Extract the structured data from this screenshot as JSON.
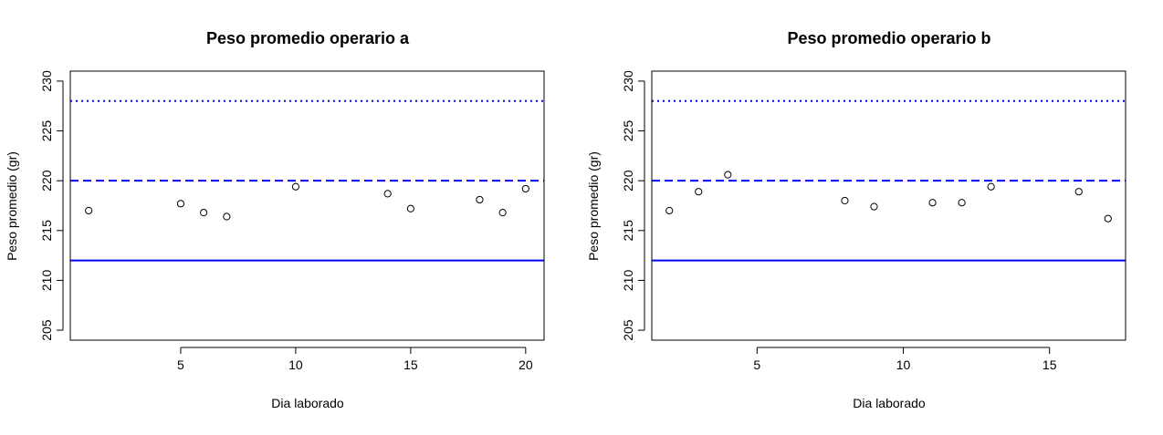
{
  "chart_data": [
    {
      "type": "scatter",
      "title": "Peso promedio operario a",
      "xlabel": "Dia laborado",
      "ylabel": "Peso promedio (gr)",
      "xlim": [
        0.2,
        20.8
      ],
      "ylim": [
        204,
        231
      ],
      "xticks": [
        5,
        10,
        15,
        20
      ],
      "yticks": [
        205,
        210,
        215,
        220,
        225,
        230
      ],
      "grid": false,
      "series": [
        {
          "x": [
            1,
            5,
            6,
            7,
            10,
            14,
            15,
            18,
            19,
            20
          ],
          "y": [
            217.0,
            217.7,
            216.8,
            216.4,
            219.4,
            218.7,
            217.2,
            218.1,
            216.8,
            219.2
          ]
        }
      ],
      "hlines": [
        {
          "y": 228,
          "style": "dotted",
          "color": "#0000ff"
        },
        {
          "y": 220,
          "style": "dashed",
          "color": "#0000ff"
        },
        {
          "y": 212,
          "style": "solid",
          "color": "#0000ff"
        }
      ]
    },
    {
      "type": "scatter",
      "title": "Peso promedio operario b",
      "xlabel": "Dia laborado",
      "ylabel": "Peso promedio (gr)",
      "xlim": [
        1.4,
        17.6
      ],
      "ylim": [
        204,
        231
      ],
      "xticks": [
        5,
        10,
        15
      ],
      "yticks": [
        205,
        210,
        215,
        220,
        225,
        230
      ],
      "grid": false,
      "series": [
        {
          "x": [
            2,
            3,
            4,
            8,
            9,
            11,
            12,
            13,
            16,
            17
          ],
          "y": [
            217.0,
            218.9,
            220.6,
            218.0,
            217.4,
            217.8,
            217.8,
            219.4,
            218.9,
            216.2
          ]
        }
      ],
      "hlines": [
        {
          "y": 228,
          "style": "dotted",
          "color": "#0000ff"
        },
        {
          "y": 220,
          "style": "dashed",
          "color": "#0000ff"
        },
        {
          "y": 212,
          "style": "solid",
          "color": "#0000ff"
        }
      ]
    }
  ]
}
